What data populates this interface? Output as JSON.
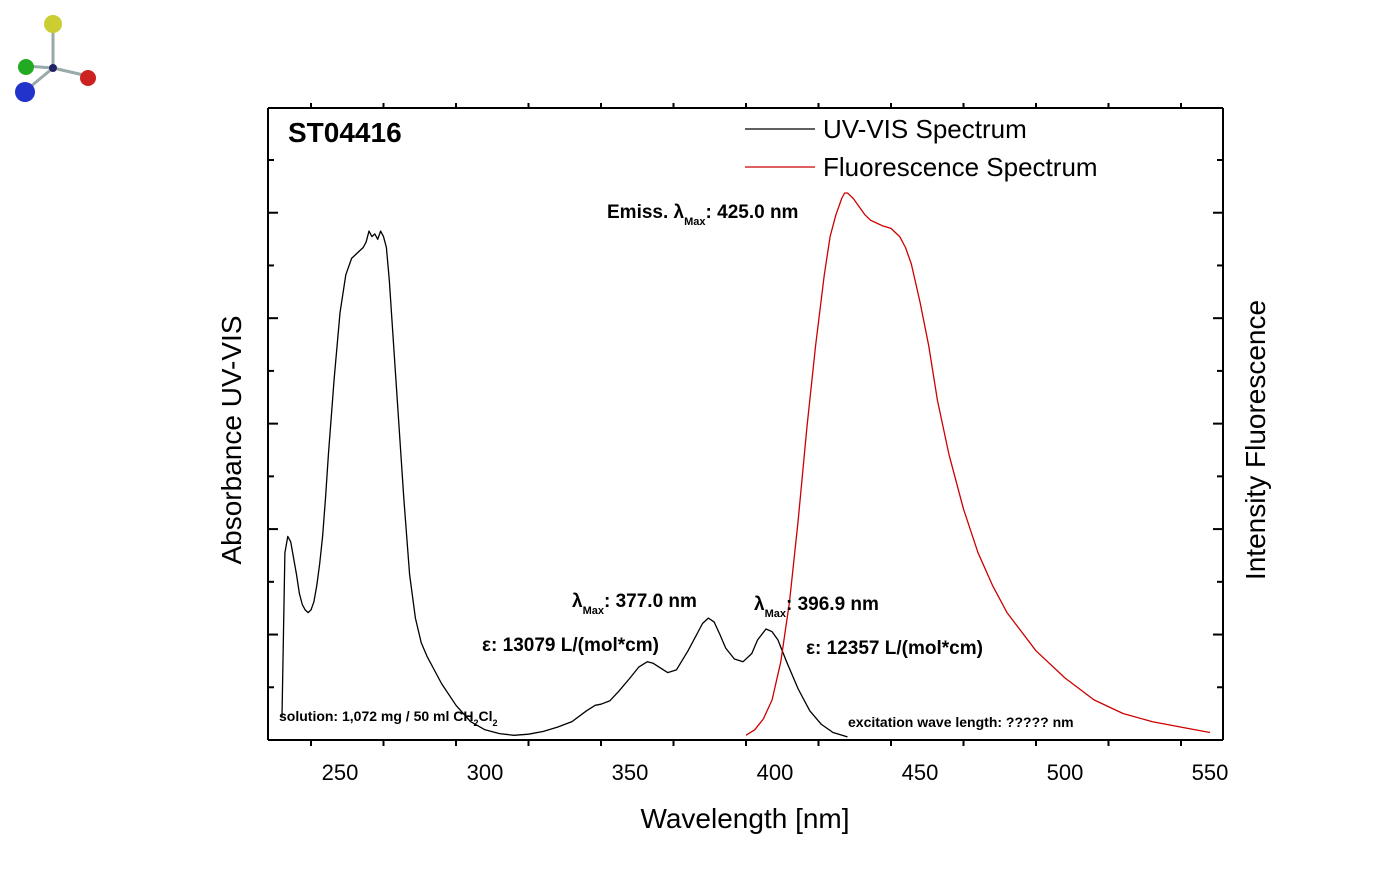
{
  "chart_data": {
    "type": "line",
    "title": "ST04416",
    "xlabel": "Wavelength [nm]",
    "ylabel_left": "Absorbance UV-VIS",
    "ylabel_right": "Intensity Fluorescence",
    "xlim": [
      230,
      550
    ],
    "xticks": [
      250,
      300,
      350,
      400,
      450,
      500,
      550
    ],
    "ylim": [
      0,
      1
    ],
    "grid": false,
    "legend_position": "top-right",
    "series": [
      {
        "name": "UV-VIS Spectrum",
        "color": "#000000",
        "x": [
          230,
          231,
          232,
          233,
          234,
          235,
          236,
          237,
          238,
          239,
          240,
          241,
          242,
          243,
          244,
          245,
          246,
          247,
          248,
          250,
          252,
          254,
          256,
          258,
          259,
          260,
          261,
          262,
          263,
          264,
          265,
          266,
          267,
          268,
          270,
          272,
          274,
          276,
          278,
          280,
          285,
          290,
          295,
          300,
          305,
          310,
          315,
          320,
          325,
          330,
          335,
          338,
          340,
          343,
          346,
          350,
          353,
          356,
          358,
          360,
          363,
          366,
          370,
          373,
          375,
          377,
          379,
          381,
          383,
          386,
          389,
          392,
          394,
          396.9,
          399,
          401,
          404,
          408,
          412,
          416,
          420,
          425
        ],
        "y": [
          0.04,
          0.34,
          0.37,
          0.36,
          0.33,
          0.3,
          0.265,
          0.245,
          0.235,
          0.23,
          0.235,
          0.25,
          0.28,
          0.32,
          0.37,
          0.44,
          0.52,
          0.59,
          0.66,
          0.78,
          0.85,
          0.88,
          0.89,
          0.9,
          0.91,
          0.93,
          0.92,
          0.925,
          0.915,
          0.93,
          0.92,
          0.9,
          0.84,
          0.76,
          0.6,
          0.44,
          0.3,
          0.22,
          0.175,
          0.15,
          0.1,
          0.06,
          0.03,
          0.015,
          0.008,
          0.005,
          0.007,
          0.012,
          0.02,
          0.03,
          0.05,
          0.06,
          0.062,
          0.068,
          0.085,
          0.11,
          0.13,
          0.14,
          0.137,
          0.13,
          0.12,
          0.125,
          0.16,
          0.19,
          0.21,
          0.22,
          0.213,
          0.19,
          0.165,
          0.145,
          0.14,
          0.155,
          0.18,
          0.2,
          0.195,
          0.18,
          0.14,
          0.09,
          0.05,
          0.025,
          0.01,
          0.002
        ]
      },
      {
        "name": "Fluorescence Spectrum",
        "color": "#cc0000",
        "x": [
          390,
          393,
          396,
          399,
          402,
          405,
          408,
          411,
          414,
          417,
          419,
          421,
          423,
          424,
          425,
          426,
          427,
          429,
          431,
          433,
          435,
          437,
          440,
          443,
          445,
          447,
          450,
          453,
          456,
          460,
          465,
          470,
          475,
          480,
          490,
          500,
          510,
          520,
          530,
          540,
          550
        ],
        "y": [
          0.005,
          0.015,
          0.035,
          0.07,
          0.14,
          0.25,
          0.4,
          0.57,
          0.72,
          0.85,
          0.92,
          0.96,
          0.99,
          1.0,
          1.0,
          0.995,
          0.99,
          0.975,
          0.96,
          0.95,
          0.945,
          0.94,
          0.935,
          0.92,
          0.9,
          0.87,
          0.8,
          0.72,
          0.62,
          0.52,
          0.42,
          0.34,
          0.28,
          0.23,
          0.16,
          0.11,
          0.07,
          0.045,
          0.03,
          0.02,
          0.01
        ]
      }
    ],
    "annotations": {
      "emission": {
        "prefix": "Emiss. λ",
        "sub": "Max",
        "value": ": 425.0 nm"
      },
      "peak1": {
        "prefix": "λ",
        "sub": "Max",
        "value": ": 377.0 nm"
      },
      "eps1": "ε: 13079 L/(mol*cm)",
      "peak2": {
        "prefix": "λ",
        "sub": "Max",
        "value": ": 396.9 nm"
      },
      "eps2": "ε: 12357 L/(mol*cm)",
      "solution": {
        "a": "solution: 1,072 mg / 50 ml CH",
        "sub1": "2",
        "b": "Cl",
        "sub2": "2"
      },
      "excitation": "excitation wave length: ????? nm"
    }
  },
  "logo": {
    "atom_colors": [
      "#cccc33",
      "#22aa22",
      "#cc2222",
      "#2233cc"
    ]
  }
}
